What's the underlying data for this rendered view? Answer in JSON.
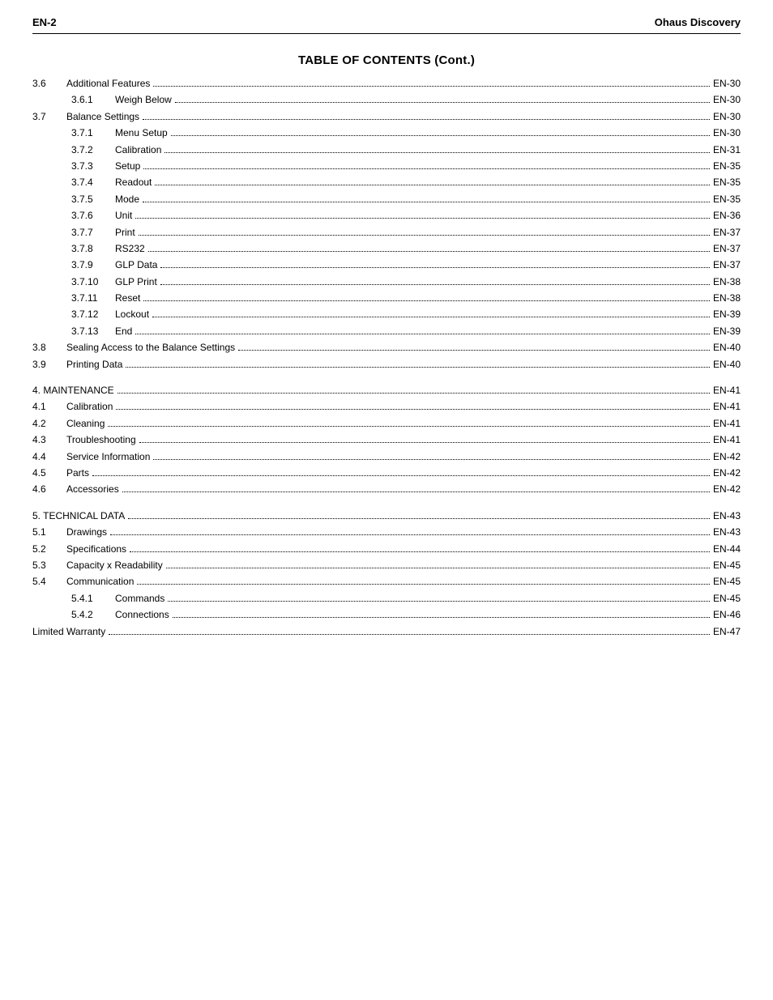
{
  "header": {
    "left": "EN-2",
    "right": "Ohaus Discovery"
  },
  "title": "TABLE OF CONTENTS (Cont.)",
  "toc": [
    {
      "type": "l1",
      "num": "3.6",
      "label": "Additional Features",
      "page": "EN-30"
    },
    {
      "type": "l2",
      "sub": "3.6.1",
      "label": "Weigh Below",
      "page": "EN-30"
    },
    {
      "type": "l1",
      "num": "3.7",
      "label": "Balance Settings",
      "page": "EN-30"
    },
    {
      "type": "l2",
      "sub": "3.7.1",
      "label": "Menu Setup",
      "page": "EN-30"
    },
    {
      "type": "l2",
      "sub": "3.7.2",
      "label": "Calibration",
      "page": "EN-31"
    },
    {
      "type": "l2",
      "sub": "3.7.3",
      "label": "Setup",
      "page": "EN-35"
    },
    {
      "type": "l2",
      "sub": "3.7.4",
      "label": "Readout",
      "page": "EN-35"
    },
    {
      "type": "l2",
      "sub": "3.7.5",
      "label": "Mode",
      "page": "EN-35"
    },
    {
      "type": "l2",
      "sub": "3.7.6",
      "label": "Unit",
      "page": "EN-36"
    },
    {
      "type": "l2",
      "sub": "3.7.7",
      "label": "Print",
      "page": "EN-37"
    },
    {
      "type": "l2",
      "sub": "3.7.8",
      "label": "RS232",
      "page": "EN-37"
    },
    {
      "type": "l2",
      "sub": "3.7.9",
      "label": "GLP Data",
      "page": "EN-37"
    },
    {
      "type": "l2",
      "sub": "3.7.10",
      "label": "GLP Print",
      "page": "EN-38"
    },
    {
      "type": "l2",
      "sub": "3.7.11",
      "label": "Reset",
      "page": "EN-38"
    },
    {
      "type": "l2",
      "sub": "3.7.12",
      "label": "Lockout",
      "page": "EN-39"
    },
    {
      "type": "l2",
      "sub": "3.7.13",
      "label": "End",
      "page": "EN-39"
    },
    {
      "type": "l1",
      "num": "3.8",
      "label": "Sealing Access to the Balance Settings",
      "page": "EN-40"
    },
    {
      "type": "l1",
      "num": "3.9",
      "label": "Printing Data",
      "page": "EN-40"
    },
    {
      "type": "gap"
    },
    {
      "type": "chapter",
      "label": "4. MAINTENANCE",
      "page": "EN-41"
    },
    {
      "type": "l1",
      "num": "4.1",
      "label": "Calibration",
      "page": "EN-41"
    },
    {
      "type": "l1",
      "num": "4.2",
      "label": "Cleaning",
      "page": "EN-41"
    },
    {
      "type": "l1",
      "num": "4.3",
      "label": "Troubleshooting",
      "page": "EN-41"
    },
    {
      "type": "l1",
      "num": "4.4",
      "label": "Service Information",
      "page": "EN-42"
    },
    {
      "type": "l1",
      "num": "4.5",
      "label": "Parts",
      "page": "EN-42"
    },
    {
      "type": "l1",
      "num": "4.6",
      "label": "Accessories",
      "page": "EN-42"
    },
    {
      "type": "gap"
    },
    {
      "type": "chapter",
      "label": "5. TECHNICAL DATA",
      "page": "EN-43"
    },
    {
      "type": "l1",
      "num": "5.1",
      "label": "Drawings",
      "page": "EN-43"
    },
    {
      "type": "l1",
      "num": "5.2",
      "label": "Specifications",
      "page": "EN-44"
    },
    {
      "type": "l1",
      "num": "5.3",
      "label": "Capacity x Readability",
      "page": "EN-45"
    },
    {
      "type": "l1",
      "num": "5.4",
      "label": "Communication",
      "page": "EN-45"
    },
    {
      "type": "l2",
      "sub": "5.4.1",
      "label": "Commands",
      "page": "EN-45"
    },
    {
      "type": "l2",
      "sub": "5.4.2",
      "label": "Connections",
      "page": "EN-46"
    },
    {
      "type": "plain",
      "label": "Limited Warranty",
      "page": "EN-47"
    }
  ]
}
